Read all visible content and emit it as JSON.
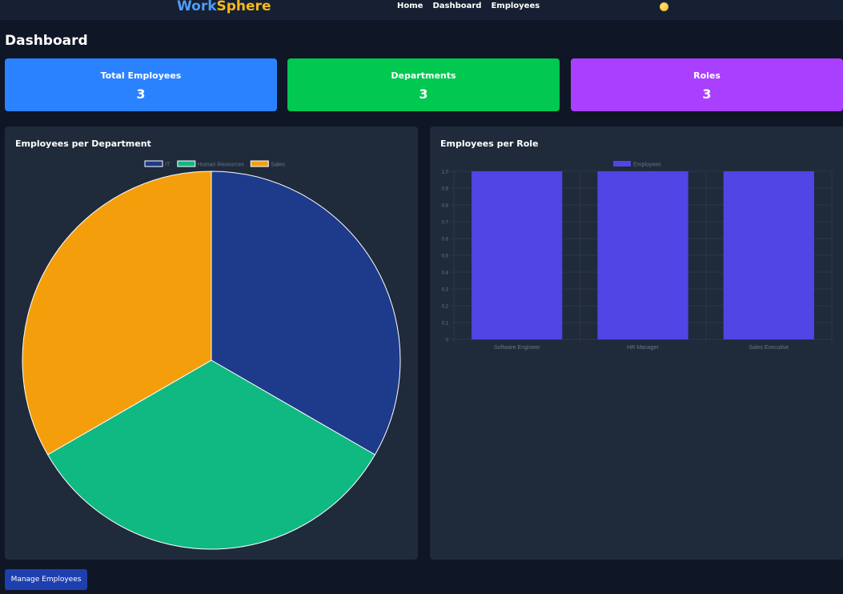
{
  "app": {
    "brand_part1": "Work",
    "brand_part2": "Sphere"
  },
  "nav": {
    "links": [
      "Home",
      "Dashboard",
      "Employees"
    ],
    "theme_toggle_icon": "sun-icon"
  },
  "page": {
    "title": "Dashboard"
  },
  "stats": [
    {
      "label": "Total Employees",
      "value": "3",
      "color": "#2a82ff"
    },
    {
      "label": "Departments",
      "value": "3",
      "color": "#00c851"
    },
    {
      "label": "Roles",
      "value": "3",
      "color": "#aa40ff"
    }
  ],
  "panels": {
    "department_title": "Employees per Department",
    "role_title": "Employees per Role"
  },
  "actions": {
    "manage_label": "Manage Employees"
  },
  "chart_data": [
    {
      "type": "pie",
      "title": "",
      "legend_position": "top",
      "categories": [
        "IT",
        "Human Resources",
        "Sales"
      ],
      "values": [
        1,
        1,
        1
      ],
      "colors": [
        "#1e3a8a",
        "#10b981",
        "#f59e0b"
      ]
    },
    {
      "type": "bar",
      "title": "",
      "legend_position": "top",
      "categories": [
        "Software Engineer",
        "HR Manager",
        "Sales Executive"
      ],
      "series": [
        {
          "name": "Employees",
          "values": [
            1,
            1,
            1
          ],
          "color": "#4f46e5"
        }
      ],
      "ylim": [
        0,
        1.0
      ],
      "yticks": [
        "0",
        "0.1",
        "0.2",
        "0.3",
        "0.4",
        "0.5",
        "0.6",
        "0.7",
        "0.8",
        "0.9",
        "1.0"
      ],
      "grid": true
    }
  ]
}
